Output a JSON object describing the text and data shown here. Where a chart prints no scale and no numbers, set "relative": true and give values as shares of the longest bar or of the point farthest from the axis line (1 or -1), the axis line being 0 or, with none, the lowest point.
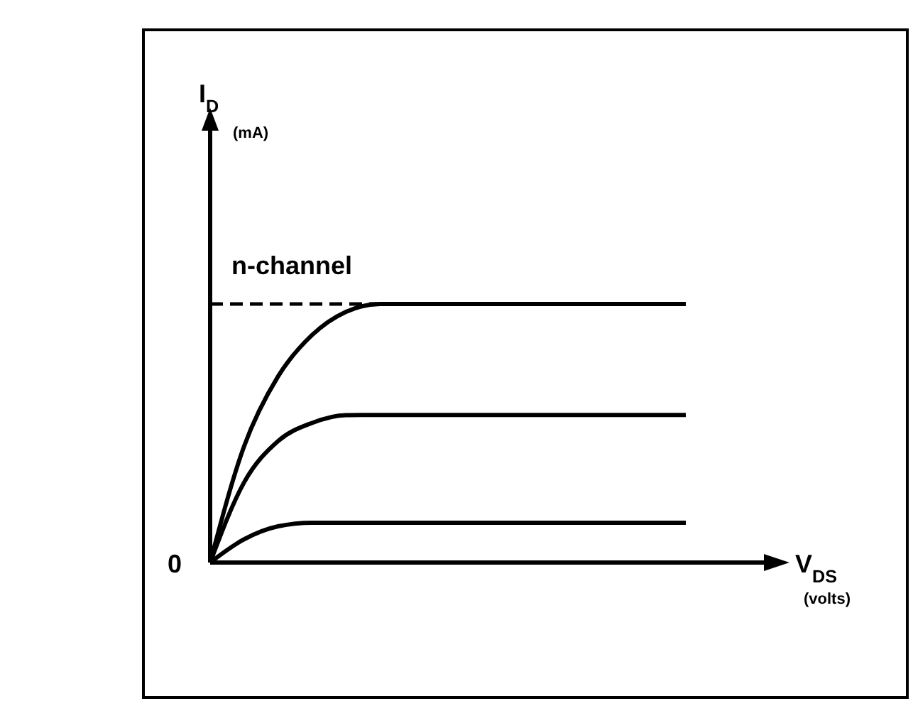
{
  "chart_data": {
    "type": "line",
    "relative": true,
    "categories": [
      null,
      null,
      null,
      null,
      null,
      null,
      null,
      null,
      null,
      null,
      null,
      null,
      null,
      null,
      null
    ],
    "series": [
      {
        "color": "#000000",
        "values": [
          0,
          0.45,
          0.72,
          0.88,
          0.97,
          1,
          1,
          1,
          1,
          1,
          1,
          1,
          1,
          1,
          1
        ]
      },
      {
        "color": "#000000",
        "values": [
          0,
          0.31,
          0.47,
          0.54,
          0.57,
          0.571,
          0.571,
          0.571,
          0.571,
          0.571,
          0.571,
          0.571,
          0.571,
          0.571,
          0.571
        ]
      },
      {
        "color": "#000000",
        "values": [
          0,
          0.09,
          0.14,
          0.154,
          0.154,
          0.154,
          0.154,
          0.154,
          0.154,
          0.154,
          0.154,
          0.154,
          0.154,
          0.154,
          0.154
        ]
      }
    ],
    "ref_lines": [
      {
        "axis": "y",
        "value": 1,
        "line_style": "dashed",
        "color": "#000000"
      }
    ],
    "annotations": [
      "I$_{D}$",
      "(mA)",
      "V$_{DS}$",
      "(volts)",
      "0",
      "n-channel"
    ],
    "marker": "none",
    "line_style": "solid"
  }
}
